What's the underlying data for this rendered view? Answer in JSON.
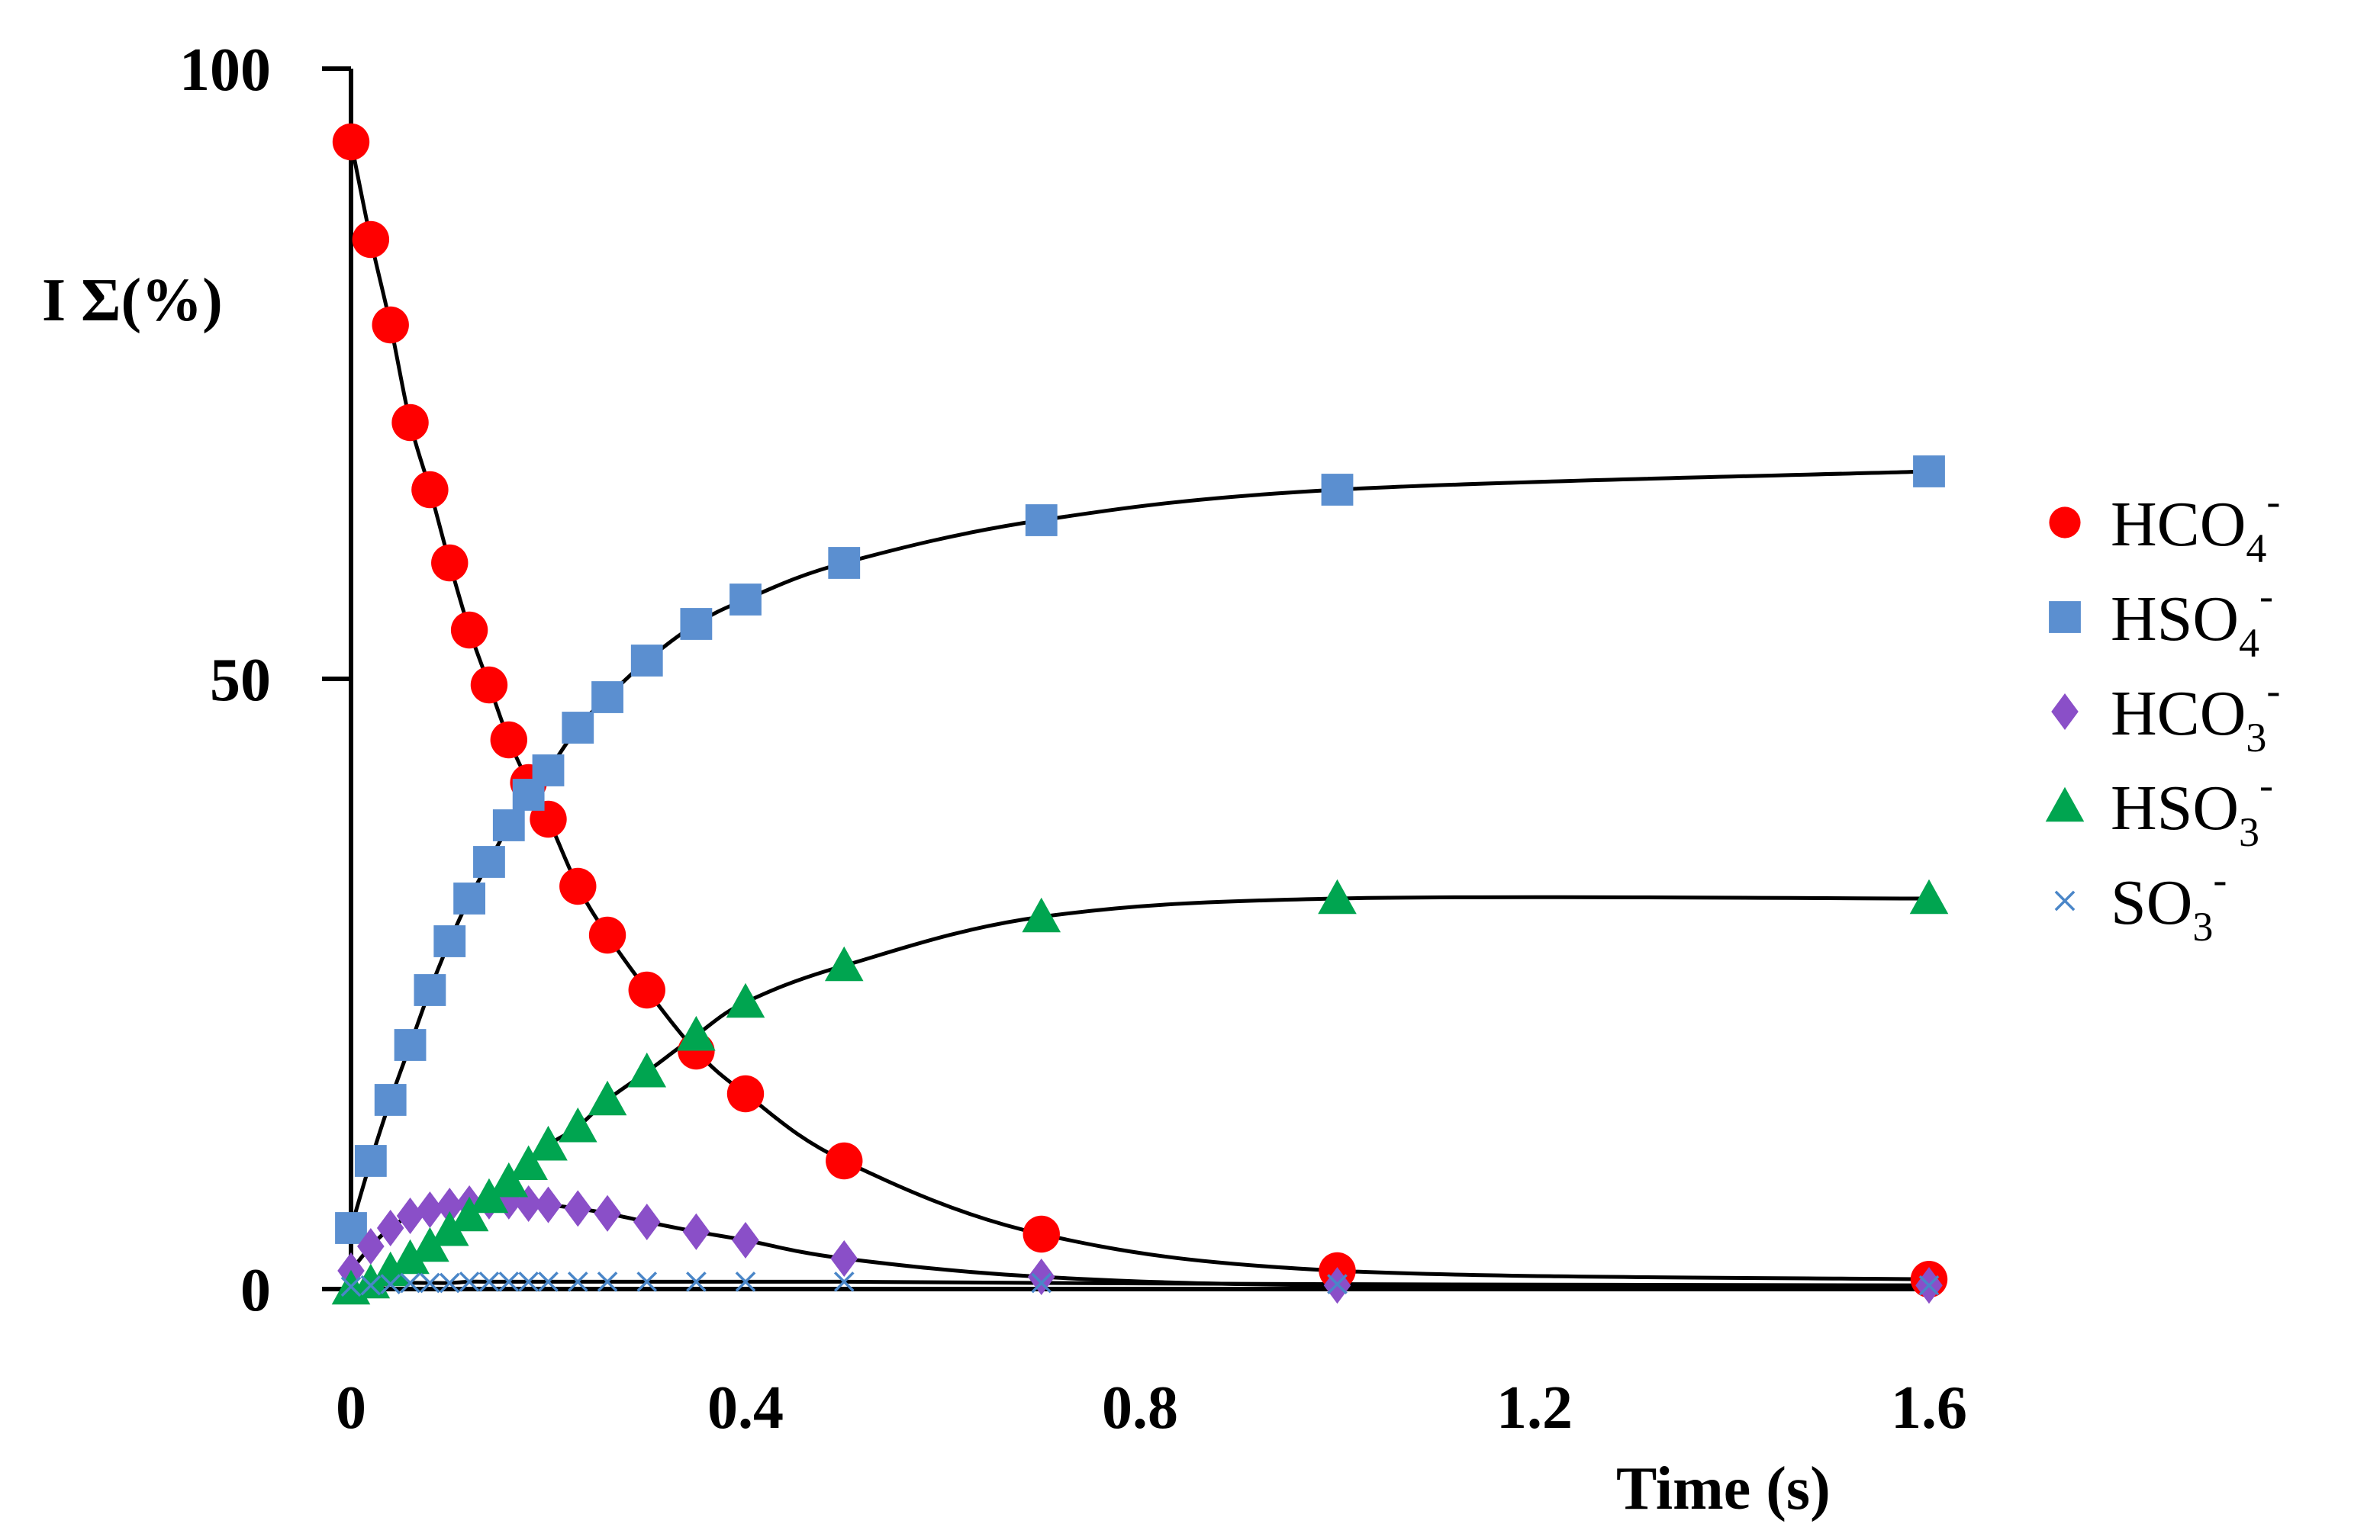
{
  "chart_data": {
    "type": "scatter",
    "title": "",
    "xlabel": "Time (s)",
    "ylabel": "I Σ(%)",
    "xlim": [
      0,
      1.6
    ],
    "ylim": [
      0,
      100
    ],
    "xticks": [
      {
        "value": 0,
        "label": "0"
      },
      {
        "value": 0.4,
        "label": "0.4"
      },
      {
        "value": 0.8,
        "label": "0.8"
      },
      {
        "value": 1.2,
        "label": "1.2"
      },
      {
        "value": 1.6,
        "label": "1.6"
      }
    ],
    "yticks": [
      {
        "value": 0,
        "label": "0"
      },
      {
        "value": 50,
        "label": "50"
      },
      {
        "value": 100,
        "label": "100"
      }
    ],
    "legend_position": "right",
    "series": [
      {
        "name": "HCO4-",
        "formula_base": "HCO",
        "subscript": "4",
        "superscript": "-",
        "marker": "circle",
        "color": "#ff0000",
        "x": [
          0,
          0.02,
          0.04,
          0.06,
          0.08,
          0.1,
          0.12,
          0.14,
          0.16,
          0.18,
          0.2,
          0.23,
          0.26,
          0.3,
          0.35,
          0.4,
          0.5,
          0.7,
          1.0,
          1.6
        ],
        "y": [
          94,
          86,
          79,
          71,
          65.5,
          59.5,
          54,
          49.5,
          45,
          41.5,
          38.5,
          33,
          29,
          24.5,
          19.5,
          16,
          10.5,
          4.5,
          1.5,
          0.8
        ]
      },
      {
        "name": "HSO4-",
        "formula_base": "HSO",
        "subscript": "4",
        "superscript": "-",
        "marker": "square",
        "color": "#5b8fd0",
        "x": [
          0,
          0.02,
          0.04,
          0.06,
          0.08,
          0.1,
          0.12,
          0.14,
          0.16,
          0.18,
          0.2,
          0.23,
          0.26,
          0.3,
          0.35,
          0.4,
          0.5,
          0.7,
          1.0,
          1.6
        ],
        "y": [
          5,
          10.5,
          15.5,
          20,
          24.5,
          28.5,
          32,
          35,
          38,
          40.5,
          42.5,
          46,
          48.5,
          51.5,
          54.5,
          56.5,
          59.5,
          63,
          65.5,
          67
        ]
      },
      {
        "name": "HCO3-",
        "formula_base": "HCO",
        "subscript": "3",
        "superscript": "-",
        "marker": "diamond",
        "color": "#8a4fc8",
        "x": [
          0,
          0.02,
          0.04,
          0.06,
          0.08,
          0.1,
          0.12,
          0.14,
          0.16,
          0.18,
          0.2,
          0.23,
          0.26,
          0.3,
          0.35,
          0.4,
          0.5,
          0.7,
          1.0,
          1.6
        ],
        "y": [
          1.5,
          3.5,
          5,
          6,
          6.5,
          6.8,
          7,
          7.2,
          7.2,
          7,
          6.9,
          6.6,
          6.2,
          5.5,
          4.7,
          4,
          2.5,
          1,
          0.3,
          0.3
        ]
      },
      {
        "name": "HSO3-",
        "formula_base": "HSO",
        "subscript": "3",
        "superscript": "-",
        "marker": "triangle",
        "color": "#00a550",
        "x": [
          0,
          0.02,
          0.04,
          0.06,
          0.08,
          0.1,
          0.12,
          0.14,
          0.16,
          0.18,
          0.2,
          0.23,
          0.26,
          0.3,
          0.35,
          0.4,
          0.5,
          0.7,
          1.0,
          1.6
        ],
        "y": [
          0,
          0.5,
          1.5,
          2.5,
          3.5,
          4.8,
          6,
          7.5,
          8.8,
          10.2,
          11.8,
          13.3,
          15.5,
          17.8,
          20.8,
          23.5,
          26.5,
          30.5,
          32,
          32
        ]
      },
      {
        "name": "SO3-",
        "formula_base": "SO",
        "subscript": "3",
        "superscript": "-",
        "marker": "x",
        "color": "#4a86c8",
        "x": [
          0,
          0.02,
          0.04,
          0.06,
          0.08,
          0.1,
          0.12,
          0.14,
          0.16,
          0.18,
          0.2,
          0.23,
          0.26,
          0.3,
          0.35,
          0.4,
          0.5,
          0.7,
          1.0,
          1.6
        ],
        "y": [
          0.2,
          0.3,
          0.4,
          0.5,
          0.5,
          0.5,
          0.6,
          0.6,
          0.6,
          0.6,
          0.6,
          0.6,
          0.6,
          0.6,
          0.6,
          0.6,
          0.6,
          0.5,
          0.4,
          0.3
        ]
      }
    ]
  }
}
